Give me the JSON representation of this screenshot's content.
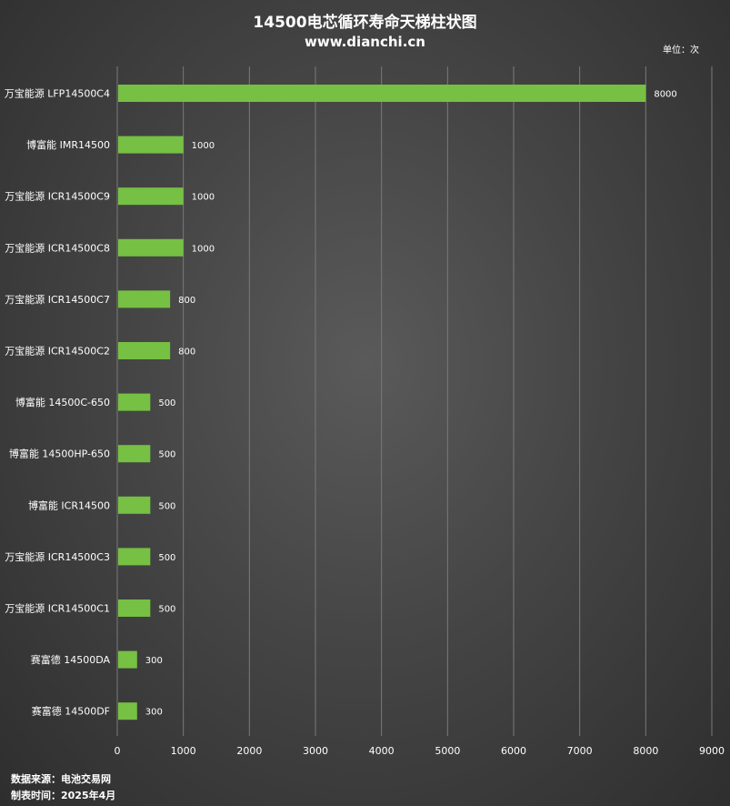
{
  "chart_data": {
    "type": "bar",
    "orientation": "horizontal",
    "title": "14500电芯循环寿命天梯柱状图",
    "subtitle": "www.dianchi.cn",
    "unit_label": "单位：次",
    "categories": [
      "万宝能源 LFP14500C4",
      "博富能 IMR14500",
      "万宝能源 ICR14500C9",
      "万宝能源 ICR14500C8",
      "万宝能源 ICR14500C7",
      "万宝能源 ICR14500C2",
      "博富能 14500C-650",
      "博富能 14500HP-650",
      "博富能 ICR14500",
      "万宝能源 ICR14500C3",
      "万宝能源 ICR14500C1",
      "赛富德 14500DA",
      "赛富德 14500DF"
    ],
    "values": [
      8000,
      1000,
      1000,
      1000,
      800,
      800,
      500,
      500,
      500,
      500,
      500,
      300,
      300
    ],
    "data_labels": [
      "8000",
      "1000",
      "1000",
      "1000",
      "800",
      "800",
      "500",
      "500",
      "500",
      "500",
      "500",
      "300",
      "300"
    ],
    "xlim": [
      0,
      9000
    ],
    "xticks": [
      "0",
      "1000",
      "2000",
      "3000",
      "4000",
      "5000",
      "6000",
      "7000",
      "8000",
      "9000"
    ],
    "grid": "vertical",
    "legend": "none"
  },
  "colors": {
    "bar": "#76c043",
    "text": "#ffffff",
    "grid": "#7a7a7a"
  },
  "footer": {
    "source": "数据来源：电池交易网",
    "date": "制表时间：2025年4月"
  }
}
